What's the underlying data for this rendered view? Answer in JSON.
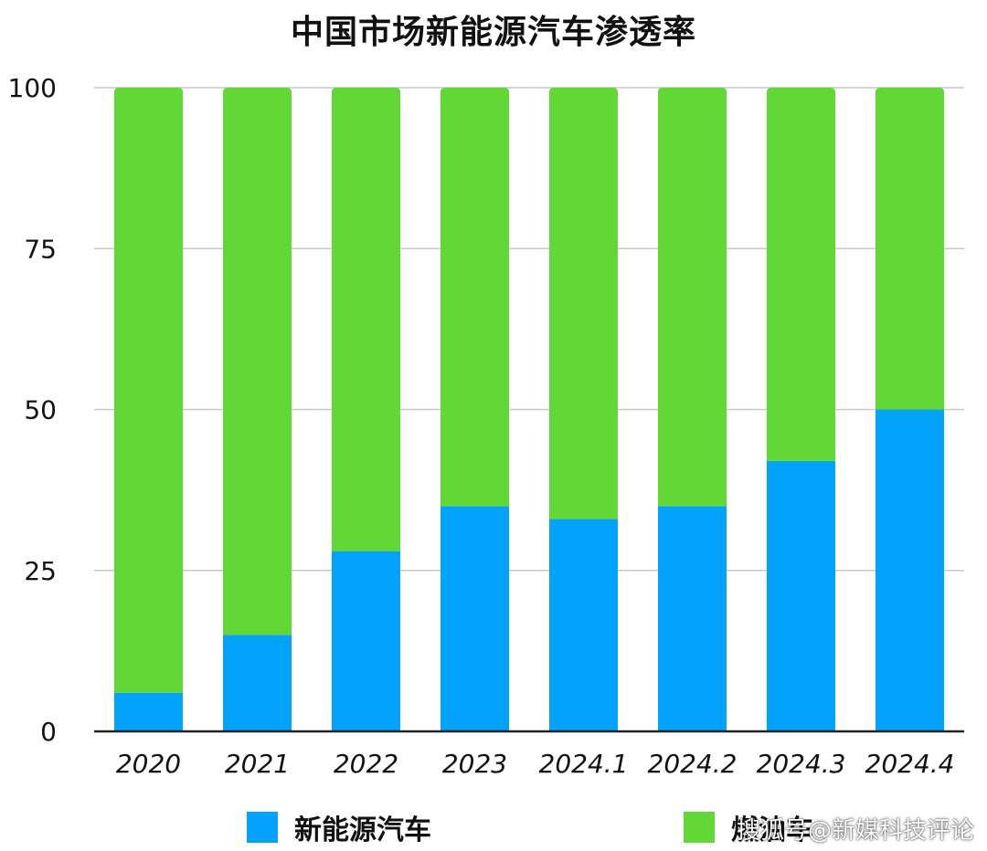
{
  "chart_data": {
    "type": "bar",
    "stacked": true,
    "title": "中国市场新能源汽车渗透率",
    "xlabel": "",
    "ylabel": "",
    "categories": [
      "2020",
      "2021",
      "2022",
      "2023",
      "2024.1",
      "2024.2",
      "2024.3",
      "2024.4"
    ],
    "series": [
      {
        "name": "新能源汽车",
        "color": "#03a3fc",
        "values": [
          6,
          15,
          28,
          35,
          33,
          35,
          42,
          50
        ]
      },
      {
        "name": "燃油车",
        "color": "#61d836",
        "values": [
          94,
          85,
          72,
          65,
          67,
          65,
          58,
          50
        ]
      }
    ],
    "ylim": [
      0,
      100
    ],
    "yticks": [
      0,
      25,
      50,
      75,
      100
    ],
    "grid": true,
    "legend_position": "bottom"
  },
  "watermark": "搜狐号@新媒科技评论"
}
